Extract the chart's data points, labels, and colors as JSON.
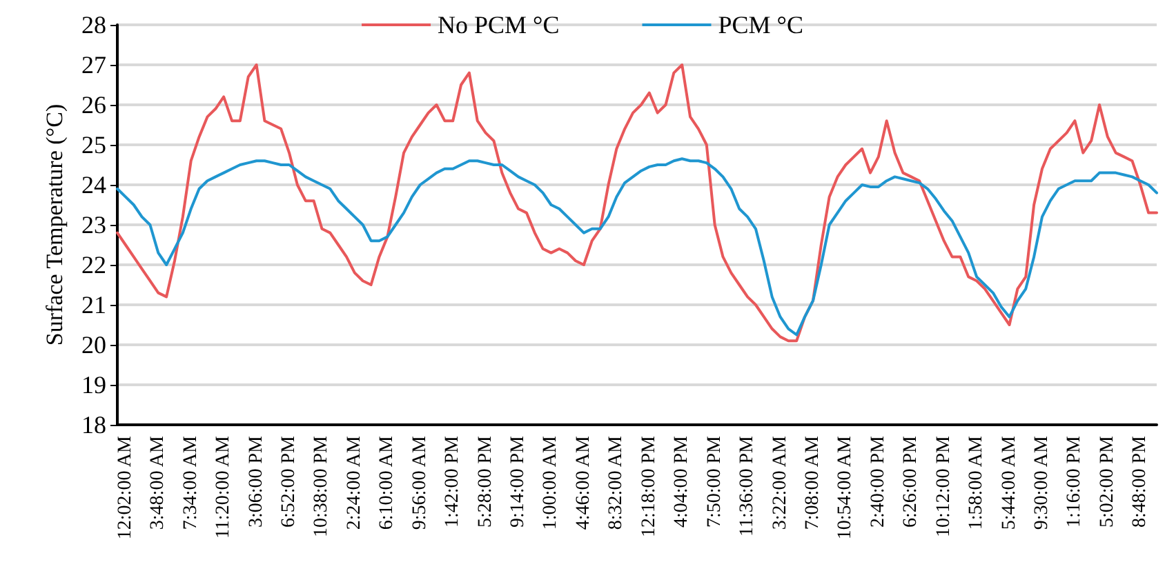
{
  "chart_data": {
    "type": "line",
    "ylabel": "Surface Temperature (°C)",
    "ylim": [
      18,
      28
    ],
    "yticks": [
      18,
      19,
      20,
      21,
      22,
      23,
      24,
      25,
      26,
      27,
      28
    ],
    "categories": [
      null,
      "12:02:00 AM",
      null,
      null,
      null,
      "3:48:00 AM",
      null,
      null,
      null,
      "7:34:00 AM",
      null,
      null,
      null,
      "11:20:00 AM",
      null,
      null,
      null,
      "3:06:00 PM",
      null,
      null,
      null,
      "6:52:00 PM",
      null,
      null,
      null,
      "10:38:00 PM",
      null,
      null,
      null,
      "2:24:00 AM",
      null,
      null,
      null,
      "6:10:00 AM",
      null,
      null,
      null,
      "9:56:00 AM",
      null,
      null,
      null,
      "1:42:00 PM",
      null,
      null,
      null,
      "5:28:00 PM",
      null,
      null,
      null,
      "9:14:00 PM",
      null,
      null,
      null,
      "1:00:00 AM",
      null,
      null,
      null,
      "4:46:00 AM",
      null,
      null,
      null,
      "8:32:00 AM",
      null,
      null,
      null,
      "12:18:00 PM",
      null,
      null,
      null,
      "4:04:00 PM",
      null,
      null,
      null,
      "7:50:00 PM",
      null,
      null,
      null,
      "11:36:00 PM",
      null,
      null,
      null,
      "3:22:00 AM",
      null,
      null,
      null,
      "7:08:00 AM",
      null,
      null,
      null,
      "10:54:00 AM",
      null,
      null,
      null,
      "2:40:00 PM",
      null,
      null,
      null,
      "6:26:00 PM",
      null,
      null,
      null,
      "10:12:00 PM",
      null,
      null,
      null,
      "1:58:00 AM",
      null,
      null,
      null,
      "5:44:00 AM",
      null,
      null,
      null,
      "9:30:00 AM",
      null,
      null,
      null,
      "1:16:00 PM",
      null,
      null,
      null,
      "5:02:00 PM",
      null,
      null,
      null,
      "8:48:00 PM",
      null,
      null
    ],
    "grid": "y",
    "legend": "top",
    "marker": "none",
    "line_style": "solid",
    "series": [
      {
        "name": "No PCM °C",
        "color": "#e8585a",
        "values": [
          22.8,
          22.5,
          22.2,
          21.9,
          21.6,
          21.3,
          21.2,
          22.1,
          23.2,
          24.6,
          25.2,
          25.7,
          25.9,
          26.2,
          25.6,
          25.6,
          26.7,
          27.0,
          25.6,
          25.5,
          25.4,
          24.8,
          24.0,
          23.6,
          23.6,
          22.9,
          22.8,
          22.5,
          22.2,
          21.8,
          21.6,
          21.5,
          22.2,
          22.7,
          23.7,
          24.8,
          25.2,
          25.5,
          25.8,
          26.0,
          25.6,
          25.6,
          26.5,
          26.8,
          25.6,
          25.3,
          25.1,
          24.3,
          23.8,
          23.4,
          23.3,
          22.8,
          22.4,
          22.3,
          22.4,
          22.3,
          22.1,
          22.0,
          22.6,
          22.9,
          24.0,
          24.9,
          25.4,
          25.8,
          26.0,
          26.3,
          25.8,
          26.0,
          26.8,
          27.0,
          25.7,
          25.4,
          25.0,
          23.0,
          22.2,
          21.8,
          21.5,
          21.2,
          21.0,
          20.7,
          20.4,
          20.2,
          20.1,
          20.1,
          20.7,
          21.1,
          22.5,
          23.7,
          24.2,
          24.5,
          24.7,
          24.9,
          24.3,
          24.7,
          25.6,
          24.8,
          24.3,
          24.2,
          24.1,
          23.6,
          23.1,
          22.6,
          22.2,
          22.2,
          21.7,
          21.6,
          21.4,
          21.1,
          20.8,
          20.5,
          21.4,
          21.7,
          23.5,
          24.4,
          24.9,
          25.1,
          25.3,
          25.6,
          24.8,
          25.1,
          26.0,
          25.2,
          24.8,
          24.7,
          24.6,
          24.0,
          23.3,
          23.3
        ]
      },
      {
        "name": "PCM °C",
        "color": "#1f96d0",
        "values": [
          23.9,
          23.7,
          23.5,
          23.2,
          23.0,
          22.3,
          22.0,
          22.4,
          22.8,
          23.4,
          23.9,
          24.1,
          24.2,
          24.3,
          24.4,
          24.5,
          24.55,
          24.6,
          24.6,
          24.55,
          24.5,
          24.5,
          24.35,
          24.2,
          24.1,
          24.0,
          23.9,
          23.6,
          23.4,
          23.2,
          23.0,
          22.6,
          22.6,
          22.7,
          23.0,
          23.3,
          23.7,
          24.0,
          24.15,
          24.3,
          24.4,
          24.4,
          24.5,
          24.6,
          24.6,
          24.55,
          24.5,
          24.5,
          24.35,
          24.2,
          24.1,
          24.0,
          23.8,
          23.5,
          23.4,
          23.2,
          23.0,
          22.8,
          22.9,
          22.9,
          23.2,
          23.7,
          24.05,
          24.2,
          24.35,
          24.45,
          24.5,
          24.5,
          24.6,
          24.65,
          24.6,
          24.6,
          24.55,
          24.4,
          24.2,
          23.9,
          23.4,
          23.2,
          22.9,
          22.1,
          21.2,
          20.7,
          20.4,
          20.25,
          20.7,
          21.1,
          22.0,
          23.0,
          23.3,
          23.6,
          23.8,
          24.0,
          23.95,
          23.95,
          24.1,
          24.2,
          24.15,
          24.1,
          24.05,
          23.9,
          23.65,
          23.35,
          23.1,
          22.7,
          22.3,
          21.7,
          21.5,
          21.3,
          20.95,
          20.7,
          21.1,
          21.4,
          22.2,
          23.2,
          23.6,
          23.9,
          24.0,
          24.1,
          24.1,
          24.1,
          24.3,
          24.3,
          24.3,
          24.25,
          24.2,
          24.1,
          24.0,
          23.8
        ]
      }
    ]
  }
}
